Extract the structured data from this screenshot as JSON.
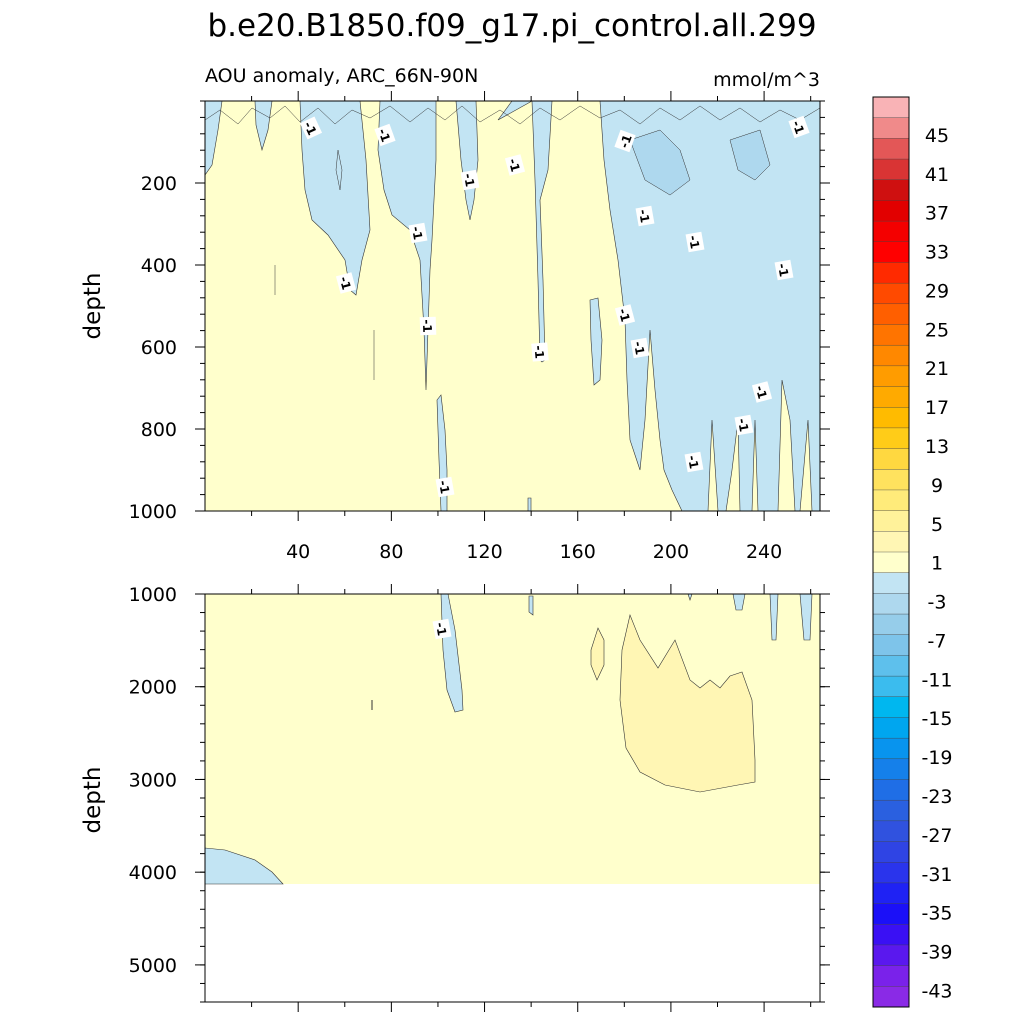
{
  "chart_data": {
    "type": "heatmap",
    "title": "b.e20.B1850.f09_g17.pi_control.all.299",
    "subtitle_left": "AOU anomaly, ARC_66N-90N",
    "subtitle_right": "mmol/m^3",
    "ylabel": "depth",
    "x_ticks": [
      40,
      80,
      120,
      160,
      200,
      240
    ],
    "x_range": [
      0,
      264
    ],
    "upper_panel": {
      "ylim": [
        0,
        1000
      ],
      "y_ticks": [
        200,
        400,
        600,
        800,
        1000
      ],
      "contour_labels": [
        "-1",
        "-1",
        "-1",
        "-1",
        "-1",
        "-1",
        "-1",
        "-1",
        "-1",
        "-1",
        "-1",
        "-1",
        "-1",
        "-1",
        "-1",
        "-1",
        "-1",
        "-1",
        "-1"
      ]
    },
    "lower_panel": {
      "ylim": [
        1000,
        5400
      ],
      "y_ticks": [
        1000,
        2000,
        3000,
        4000,
        5000
      ],
      "contour_labels": [
        "-1"
      ]
    },
    "colorbar": {
      "labels": [
        "45",
        "41",
        "37",
        "33",
        "29",
        "25",
        "21",
        "17",
        "13",
        "9",
        "5",
        "1",
        "-3",
        "-7",
        "-11",
        "-15",
        "-19",
        "-23",
        "-27",
        "-31",
        "-35",
        "-39",
        "-43"
      ],
      "colors": [
        "#f9b3b6",
        "#f08a8a",
        "#e35757",
        "#d93434",
        "#cf1010",
        "#e20000",
        "#f40000",
        "#ff0000",
        "#ff2a00",
        "#ff4a00",
        "#ff5f00",
        "#ff7400",
        "#ff8800",
        "#ff9c00",
        "#ffaa00",
        "#ffbb00",
        "#ffcc18",
        "#ffd840",
        "#ffe25e",
        "#ffeb7a",
        "#fff29a",
        "#fff6b4",
        "#ffffcc",
        "#c2e4f3",
        "#aed8ee",
        "#96cdea",
        "#7ec4ea",
        "#5ec0ec",
        "#3bbcee",
        "#00b7ef",
        "#00a6ef",
        "#0894ee",
        "#1580ea",
        "#1f6ee6",
        "#2a60e0",
        "#3052df",
        "#2f44e4",
        "#2a34ec",
        "#1f22f4",
        "#1b10f8",
        "#3a10f4",
        "#5a18ee",
        "#7a22ea",
        "#8a2ae6"
      ]
    }
  }
}
